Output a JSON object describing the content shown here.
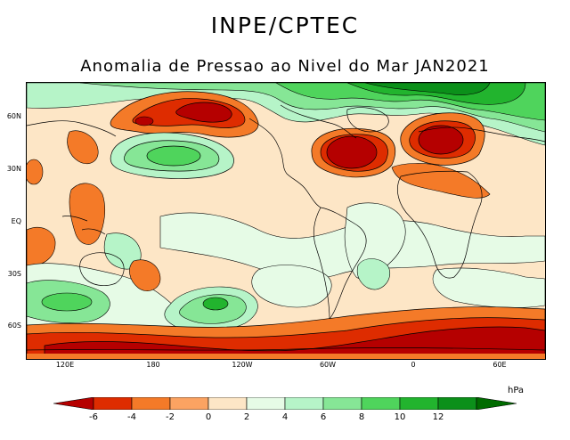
{
  "header": {
    "agency": "INPE/CPTEC",
    "subtitle": "Anomalia de Pressao ao Nivel do Mar JAN2021"
  },
  "map": {
    "lat_labels": [
      "60N",
      "30N",
      "EQ",
      "30S",
      "60S"
    ],
    "lon_labels": [
      "120E",
      "180",
      "120W",
      "60W",
      "0",
      "60E"
    ]
  },
  "legend": {
    "unit": "hPa",
    "ticks": [
      "-6",
      "-4",
      "-2",
      "0",
      "2",
      "4",
      "6",
      "8",
      "10",
      "12"
    ],
    "colors": [
      "#b50000",
      "#de2c00",
      "#f47a28",
      "#fba362",
      "#fde6c6",
      "#e6fbe6",
      "#b6f4c8",
      "#86e696",
      "#4fd45c",
      "#22b42e",
      "#0b901a",
      "#006b00"
    ]
  }
}
